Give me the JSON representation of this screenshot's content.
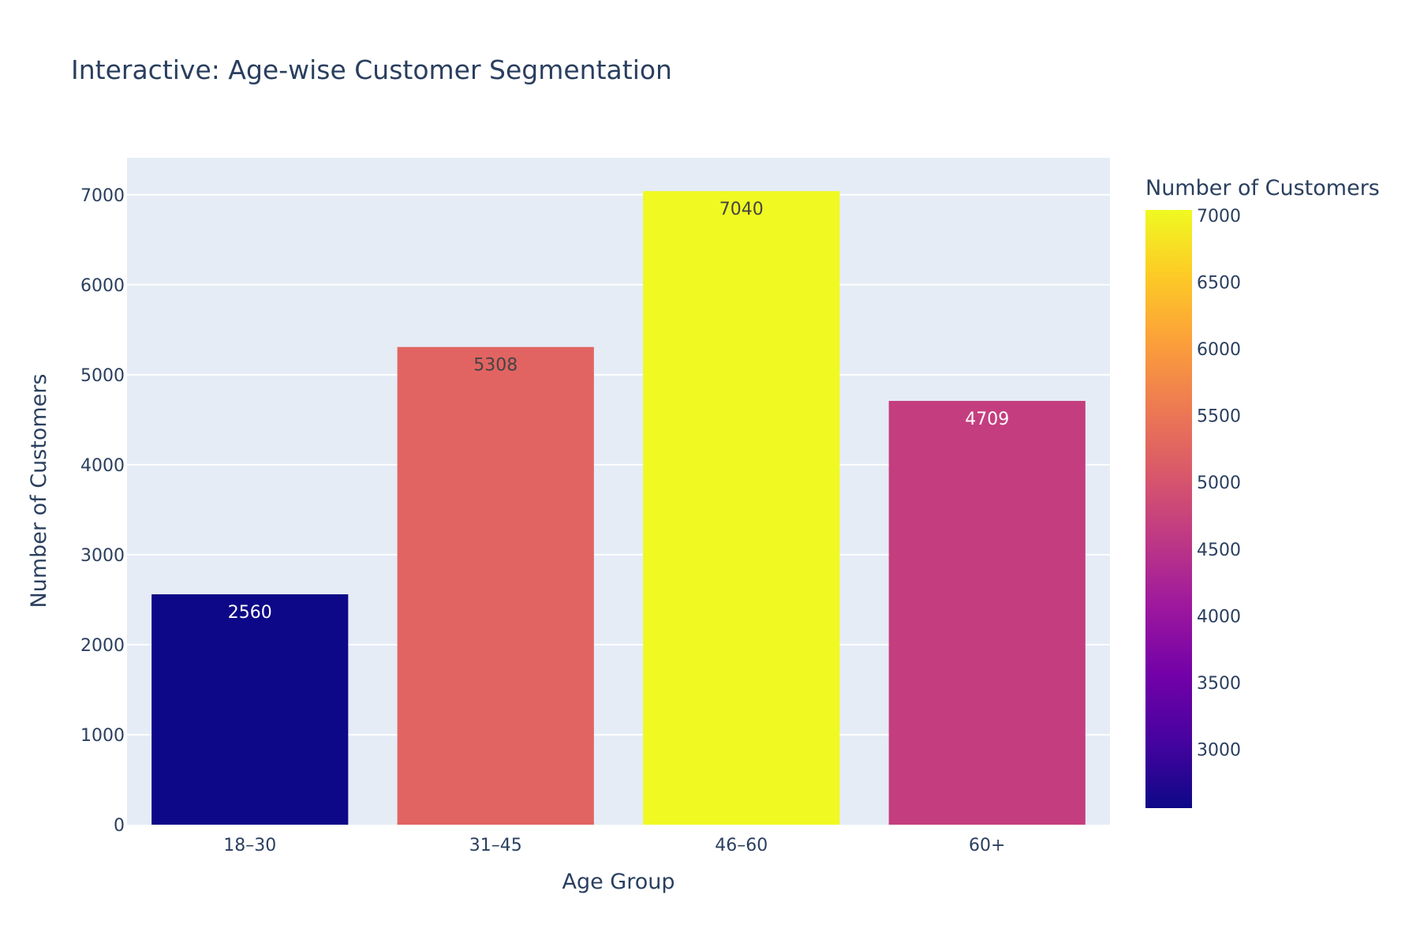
{
  "chart_data": {
    "type": "bar",
    "title": "Interactive: Age-wise Customer Segmentation",
    "xlabel": "Age Group",
    "ylabel": "Number of Customers",
    "categories": [
      "18–30",
      "31–45",
      "46–60",
      "60+"
    ],
    "values": [
      2560,
      5308,
      7040,
      4709
    ],
    "value_labels": [
      "2560",
      "5308",
      "7040",
      "4709"
    ],
    "bar_colors": [
      "#0d0887",
      "#e16462",
      "#f0f921",
      "#c43e7f"
    ],
    "label_colors": [
      "#ffffff",
      "#444444",
      "#444444",
      "#ffffff"
    ],
    "ylim": [
      0,
      7410
    ],
    "yticks": [
      0,
      1000,
      2000,
      3000,
      4000,
      5000,
      6000,
      7000
    ],
    "ytick_labels": [
      "0",
      "1000",
      "2000",
      "3000",
      "4000",
      "5000",
      "6000",
      "7000"
    ],
    "grid": true,
    "plot_bgcolor": "#e5ecf6",
    "colorbar": {
      "title": "Number of Customers",
      "range": [
        2560,
        7040
      ],
      "ticks": [
        3000,
        3500,
        4000,
        4500,
        5000,
        5500,
        6000,
        6500,
        7000
      ],
      "tick_labels": [
        "3000",
        "3500",
        "4000",
        "4500",
        "5000",
        "5500",
        "6000",
        "6500",
        "7000"
      ],
      "colorscale": "plasma",
      "colorscale_stops": [
        "#0d0887",
        "#46039f",
        "#7201a8",
        "#9c179e",
        "#bd3786",
        "#d8576b",
        "#ed7953",
        "#fb9f3a",
        "#fdca26",
        "#f0f921"
      ]
    }
  }
}
